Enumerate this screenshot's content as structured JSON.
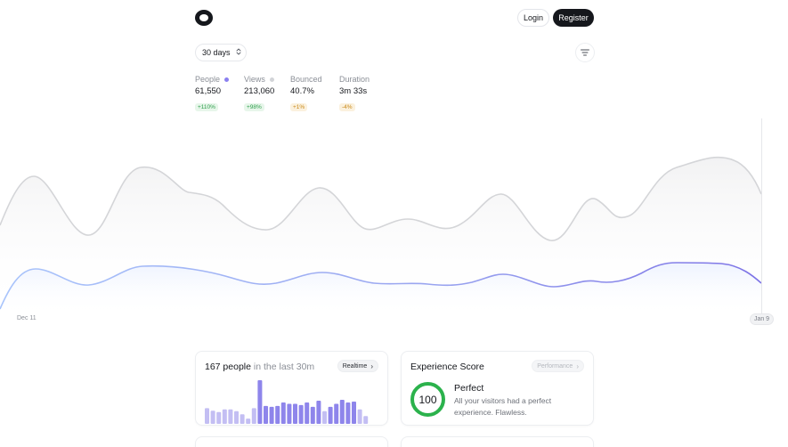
{
  "header": {
    "logo_icon": "circle-logo-icon",
    "login_label": "Login",
    "register_label": "Register"
  },
  "controls": {
    "range_label": "30 days",
    "range_icon": "chevron-up-down-icon",
    "filter_icon": "filter-lines-icon"
  },
  "metrics": [
    {
      "label": "People",
      "value": "61,550",
      "change": "+110%",
      "dot_color": "#8b80f0"
    },
    {
      "label": "Views",
      "value": "213,060",
      "change": "+98%",
      "dot_color": "#d2d4d8"
    },
    {
      "label": "Bounced",
      "value": "40.7%",
      "change": "+1%"
    },
    {
      "label": "Duration",
      "value": "3m 33s",
      "change": "-4%"
    }
  ],
  "timeline": {
    "start_label": "Dec 11",
    "end_label": "Jan 9",
    "colors": {
      "views": "#d4d5d8",
      "people_start": "#a9c4fb",
      "people_end": "#7d73e6"
    }
  },
  "realtime": {
    "count_text": "167 people",
    "suffix_text": "in the last 30m",
    "button_label": "Realtime",
    "bar_levels": [
      0.36,
      0.3,
      0.27,
      0.33,
      0.33,
      0.29,
      0.22,
      0.12,
      0.36,
      1.0,
      0.41,
      0.39,
      0.41,
      0.49,
      0.46,
      0.46,
      0.43,
      0.49,
      0.39,
      0.53,
      0.29,
      0.39,
      0.46,
      0.55,
      0.49,
      0.51,
      0.33,
      0.18
    ],
    "bar_colors": {
      "light": "#c3bef3",
      "dark": "#8e85eb"
    }
  },
  "experience": {
    "title": "Experience Score",
    "button_label": "Performance",
    "score": "100",
    "score_fraction": 1.0,
    "score_color": "#2bb24c",
    "headline": "Perfect",
    "description": "All your visitors had a perfect experience. Flawless."
  }
}
